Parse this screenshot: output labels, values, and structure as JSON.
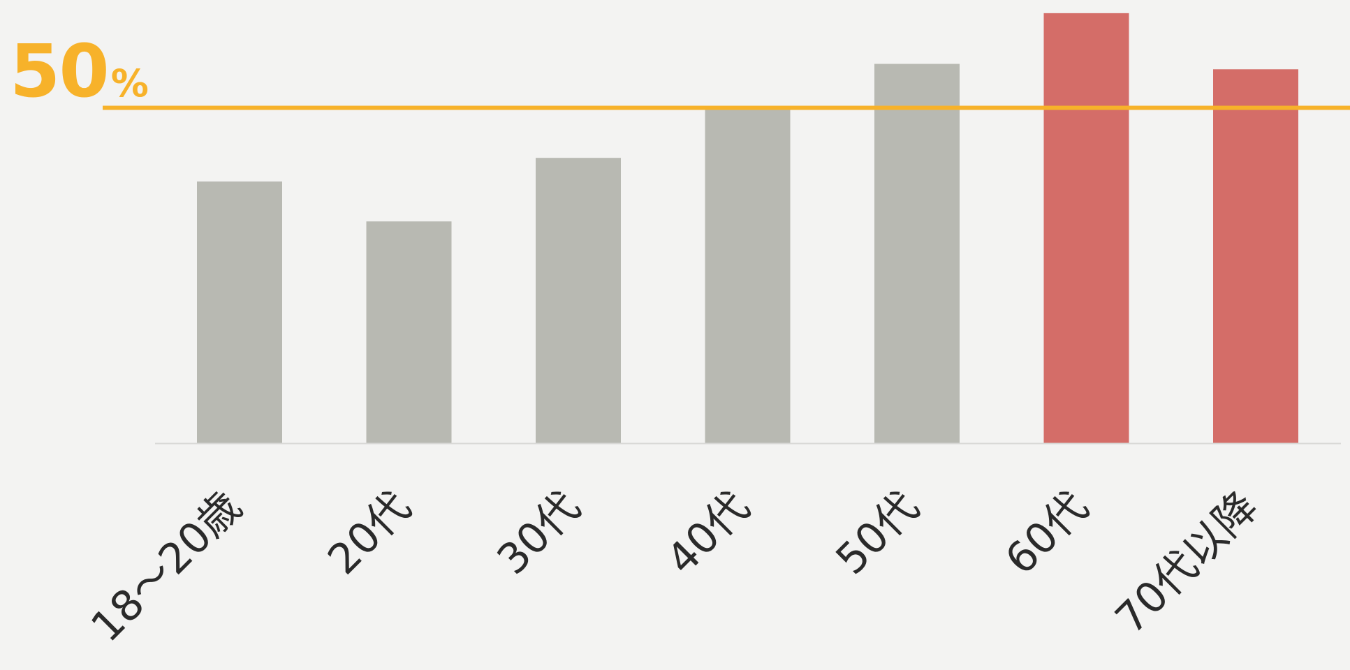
{
  "chart_data": {
    "type": "bar",
    "categories": [
      "18〜20歳",
      "20代",
      "30代",
      "40代",
      "50代",
      "60代",
      "70代以降"
    ],
    "values": [
      38.7,
      32.8,
      42.2,
      49.6,
      56.1,
      63.6,
      55.3
    ],
    "ylim": [
      0,
      64
    ],
    "reference_line": {
      "value": 49.6,
      "label_number": "50",
      "label_unit": "%"
    },
    "bar_colors": [
      "#b8b9b2",
      "#b8b9b2",
      "#b8b9b2",
      "#b8b9b2",
      "#b8b9b2",
      "#d46d68",
      "#d46d68"
    ],
    "reference_color": "#f7b22a",
    "axis_color": "#d8d8d6",
    "title": "",
    "xlabel": "",
    "ylabel": "",
    "grid": false,
    "legend": "none"
  }
}
